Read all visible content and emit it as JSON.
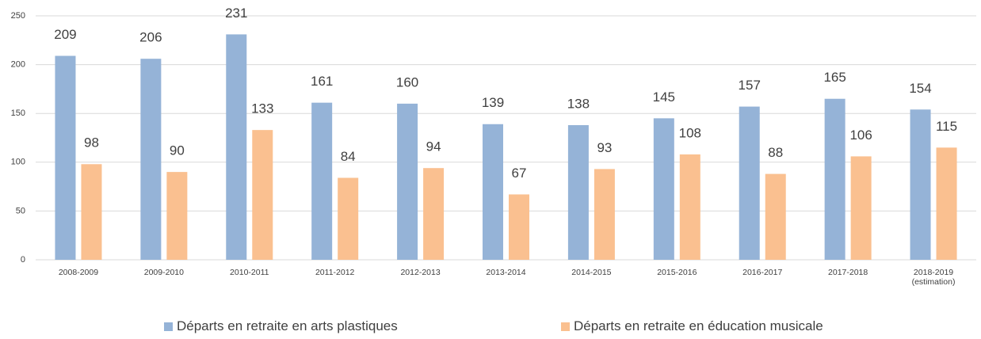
{
  "chart_data": {
    "type": "bar",
    "categories": [
      "2008-2009",
      "2009-2010",
      "2010-2011",
      "2011-2012",
      "2012-2013",
      "2013-2014",
      "2014-2015",
      "2015-2016",
      "2016-2017",
      "2017-2018",
      "2018-2019\n(estimation)"
    ],
    "series": [
      {
        "name": "Départs en retraite en arts plastiques",
        "color": "#95b3d7",
        "values": [
          209,
          206,
          231,
          161,
          160,
          139,
          138,
          145,
          157,
          165,
          154
        ]
      },
      {
        "name": "Départs en retraite en éducation musicale",
        "color": "#fac090",
        "values": [
          98,
          90,
          133,
          84,
          94,
          67,
          93,
          108,
          88,
          106,
          115
        ]
      }
    ],
    "ylim": [
      0,
      250
    ],
    "yticks": [
      0,
      50,
      100,
      150,
      200,
      250
    ],
    "grid": true,
    "legend": "bottom"
  }
}
